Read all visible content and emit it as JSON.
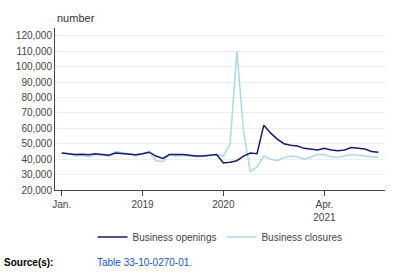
{
  "chart_data": {
    "type": "line",
    "ylabel": "number",
    "categories": [
      "Jan.",
      null,
      null,
      null,
      null,
      null,
      null,
      null,
      null,
      null,
      null,
      null,
      "2019",
      null,
      null,
      null,
      null,
      null,
      null,
      null,
      null,
      null,
      null,
      null,
      "2020",
      null,
      null,
      null,
      null,
      null,
      null,
      null,
      null,
      null,
      null,
      null,
      null,
      null,
      null,
      "Apr.\n2021",
      null,
      null,
      null,
      null,
      null,
      null,
      null,
      null
    ],
    "series": [
      {
        "name": "Business closures",
        "color": "#add8e6",
        "values": [
          44000,
          43500,
          42000,
          42500,
          41500,
          43000,
          42500,
          42000,
          45000,
          44000,
          43500,
          42000,
          43500,
          45000,
          39000,
          38500,
          43000,
          42000,
          42500,
          42000,
          41500,
          42000,
          42500,
          43000,
          42000,
          50000,
          110000,
          58000,
          32000,
          35000,
          42000,
          40000,
          39000,
          41000,
          42000,
          41500,
          40000,
          41500,
          43000,
          43000,
          41500,
          41000,
          42000,
          43000,
          42500,
          42000,
          41500,
          41000
        ]
      },
      {
        "name": "Business openings",
        "color": "#1a1a6e",
        "values": [
          44000,
          43500,
          43000,
          43200,
          42800,
          43500,
          43000,
          42500,
          44000,
          43500,
          43000,
          42800,
          43500,
          44500,
          42000,
          40500,
          43000,
          43000,
          43000,
          42500,
          42000,
          42000,
          42500,
          43000,
          37500,
          38000,
          39000,
          42000,
          44000,
          43500,
          62000,
          57000,
          53000,
          50000,
          49000,
          48500,
          47000,
          46500,
          46000,
          47000,
          46000,
          45500,
          46000,
          47500,
          47000,
          46500,
          45000,
          44500
        ]
      }
    ],
    "ylim": [
      20000,
      125000
    ],
    "yticks": [
      {
        "value": 20000,
        "label": "20,000"
      },
      {
        "value": 30000,
        "label": "30,000"
      },
      {
        "value": 40000,
        "label": "40,000"
      },
      {
        "value": 50000,
        "label": "50,000"
      },
      {
        "value": 60000,
        "label": "60,000"
      },
      {
        "value": 70000,
        "label": "70,000"
      },
      {
        "value": 80000,
        "label": "80,000"
      },
      {
        "value": 90000,
        "label": "90,000"
      },
      {
        "value": 100000,
        "label": "100,000"
      },
      {
        "value": 110000,
        "label": "110,000"
      },
      {
        "value": 120000,
        "label": "120,000"
      }
    ],
    "grid": true,
    "annotations": [
      "Source(s):",
      "Table 33-10-0270-01."
    ]
  }
}
